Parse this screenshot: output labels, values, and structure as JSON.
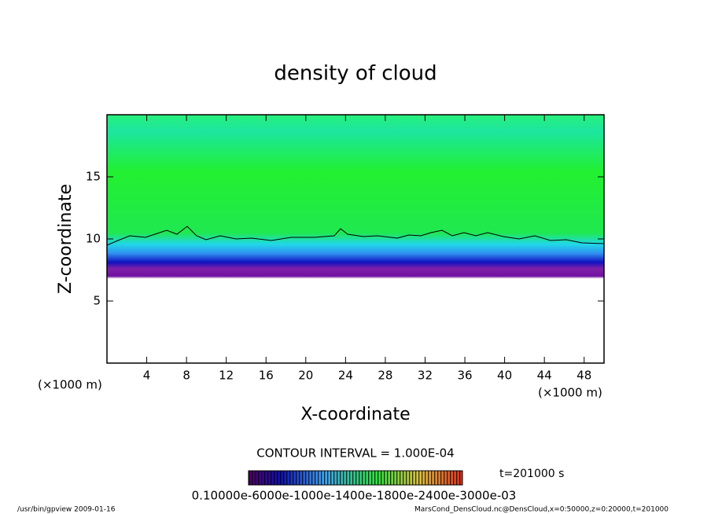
{
  "chart_data": {
    "type": "contour",
    "title": "density of cloud",
    "x_label": "X-coordinate",
    "y_label": "Z-coordinate",
    "x_unit_left": "(×1000 m)",
    "x_unit_right": "(×1000 m)",
    "xlim": [
      0,
      50
    ],
    "ylim": [
      0,
      20
    ],
    "xticks": [
      4,
      8,
      12,
      16,
      20,
      24,
      28,
      32,
      36,
      40,
      44,
      48
    ],
    "yticks": [
      5,
      10,
      15
    ],
    "contour_interval": "CONTOUR INTERVAL = 1.000E-04",
    "colorbar_labels": "0.10000e-6000e-1000e-1400e-1800e-2400e-3000e-03",
    "time_label": "t=201000 s",
    "footer_left": "/usr/bin/gpview  2009-01-16",
    "footer_right": "MarsCond_DensCloud.nc@DensCloud,x=0:50000,z=0:20000,t=201000"
  }
}
